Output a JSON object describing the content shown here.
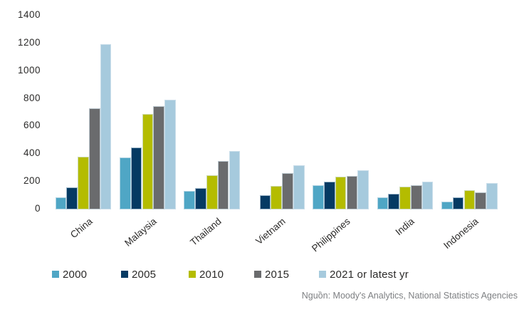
{
  "chart_data": {
    "type": "bar",
    "title": "",
    "categories": [
      "China",
      "Malaysia",
      "Thailand",
      "Vietnam",
      "Philippines",
      "India",
      "Indonesia"
    ],
    "series": [
      {
        "name": "2000",
        "color": "#4FA6C5",
        "values": [
          85,
          375,
          135,
          null,
          175,
          90,
          55
        ]
      },
      {
        "name": "2005",
        "color": "#053A63",
        "values": [
          160,
          450,
          155,
          105,
          200,
          115,
          90
        ]
      },
      {
        "name": "2010",
        "color": "#B4BC00",
        "values": [
          380,
          690,
          245,
          170,
          235,
          165,
          140
        ]
      },
      {
        "name": "2015",
        "color": "#6A6B6D",
        "values": [
          730,
          745,
          350,
          265,
          240,
          175,
          125
        ]
      },
      {
        "name": "2021 or latest yr",
        "color": "#A6CADD",
        "values": [
          1195,
          795,
          420,
          320,
          285,
          200,
          190
        ]
      }
    ],
    "ylim": [
      0,
      1400
    ],
    "yticks": [
      0,
      200,
      400,
      600,
      800,
      1000,
      1200,
      1400
    ],
    "xlabel": "",
    "ylabel": "",
    "grid": false,
    "legend_position": "bottom",
    "source_note": "Nguồn: Moody's Analytics, National Statistics Agencies"
  }
}
